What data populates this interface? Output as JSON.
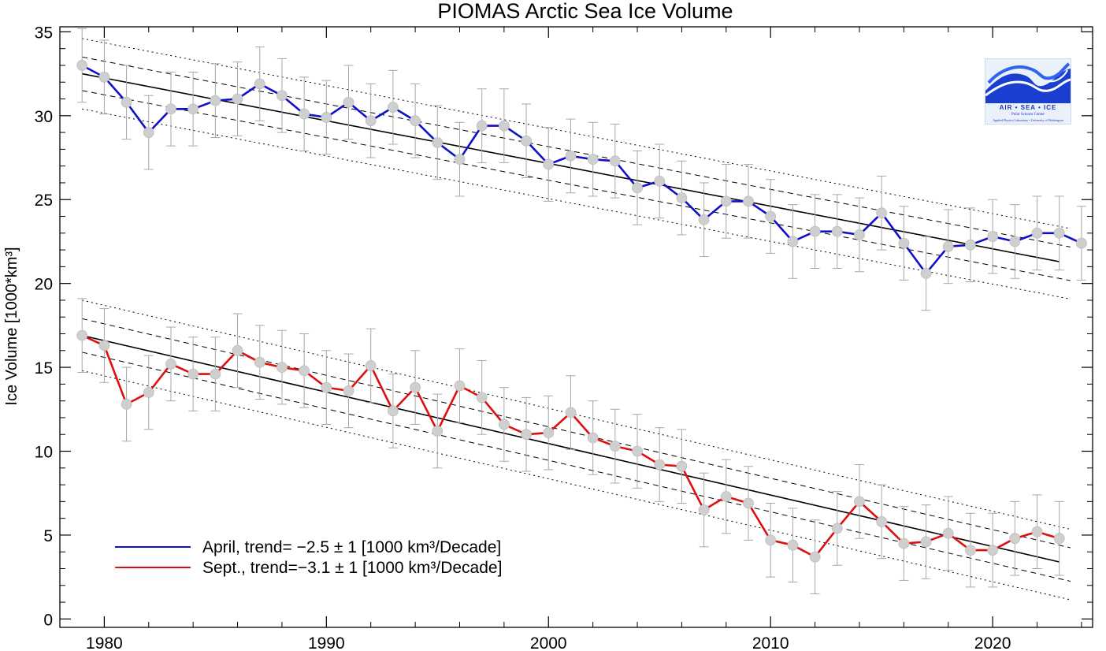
{
  "chart_data": {
    "type": "line",
    "title": "PIOMAS Arctic Sea Ice Volume",
    "ylabel": "Ice Volume [1000*km³]",
    "xlabel": "",
    "xlim": [
      1978,
      2024.5
    ],
    "ylim": [
      -0.5,
      35.3
    ],
    "x_ticks": [
      1980,
      1990,
      2000,
      2010,
      2020
    ],
    "y_ticks": [
      0,
      5,
      10,
      15,
      20,
      25,
      30,
      35
    ],
    "grid": false,
    "legend_position": "bottom-left",
    "error_bar": 2.2,
    "series": [
      {
        "name": "April",
        "legend_label": "April, trend= −2.5 ± 1 [1000 km³/Decade]",
        "color": "#1010c8",
        "x": [
          1979,
          1980,
          1981,
          1982,
          1983,
          1984,
          1985,
          1986,
          1987,
          1988,
          1989,
          1990,
          1991,
          1992,
          1993,
          1994,
          1995,
          1996,
          1997,
          1998,
          1999,
          2000,
          2001,
          2002,
          2003,
          2004,
          2005,
          2006,
          2007,
          2008,
          2009,
          2010,
          2011,
          2012,
          2013,
          2014,
          2015,
          2016,
          2017,
          2018,
          2019,
          2020,
          2021,
          2022,
          2023,
          2024
        ],
        "y": [
          33.0,
          32.3,
          30.8,
          29.0,
          30.4,
          30.4,
          30.9,
          31.0,
          31.9,
          31.2,
          30.1,
          29.9,
          30.8,
          29.7,
          30.5,
          29.7,
          28.4,
          27.4,
          29.4,
          29.4,
          28.5,
          27.1,
          27.6,
          27.4,
          27.3,
          25.7,
          26.1,
          25.1,
          23.8,
          24.9,
          24.9,
          24.0,
          22.5,
          23.1,
          23.1,
          22.9,
          24.2,
          22.4,
          20.6,
          22.2,
          22.3,
          22.8,
          22.5,
          23.0,
          23.0,
          22.4
        ],
        "trend": {
          "start": [
            1979,
            32.5
          ],
          "end": [
            2023,
            21.3
          ]
        }
      },
      {
        "name": "Sept.",
        "legend_label": "Sept., trend=−3.1 ± 1 [1000 km³/Decade]",
        "color": "#dd1010",
        "x": [
          1979,
          1980,
          1981,
          1982,
          1983,
          1984,
          1985,
          1986,
          1987,
          1988,
          1989,
          1990,
          1991,
          1992,
          1993,
          1994,
          1995,
          1996,
          1997,
          1998,
          1999,
          2000,
          2001,
          2002,
          2003,
          2004,
          2005,
          2006,
          2007,
          2008,
          2009,
          2010,
          2011,
          2012,
          2013,
          2014,
          2015,
          2016,
          2017,
          2018,
          2019,
          2020,
          2021,
          2022,
          2023
        ],
        "y": [
          16.9,
          16.3,
          12.8,
          13.5,
          15.2,
          14.6,
          14.6,
          16.0,
          15.3,
          15.0,
          14.8,
          13.8,
          13.6,
          15.1,
          12.4,
          13.8,
          11.2,
          13.9,
          13.2,
          11.6,
          11.0,
          11.1,
          12.3,
          10.8,
          10.3,
          10.0,
          9.2,
          9.1,
          6.5,
          7.3,
          6.9,
          4.7,
          4.4,
          3.7,
          5.4,
          7.0,
          5.8,
          4.5,
          4.6,
          5.1,
          4.1,
          4.1,
          4.8,
          5.2,
          4.8
        ],
        "trend": {
          "start": [
            1979,
            16.9
          ],
          "end": [
            2023,
            3.4
          ]
        }
      }
    ]
  },
  "logo": {
    "text": "AIR  •  SEA  •  ICE",
    "subtitle": "Polar Science Center",
    "subtitle2": "Applied Physics Laboratory • University of Washington"
  }
}
